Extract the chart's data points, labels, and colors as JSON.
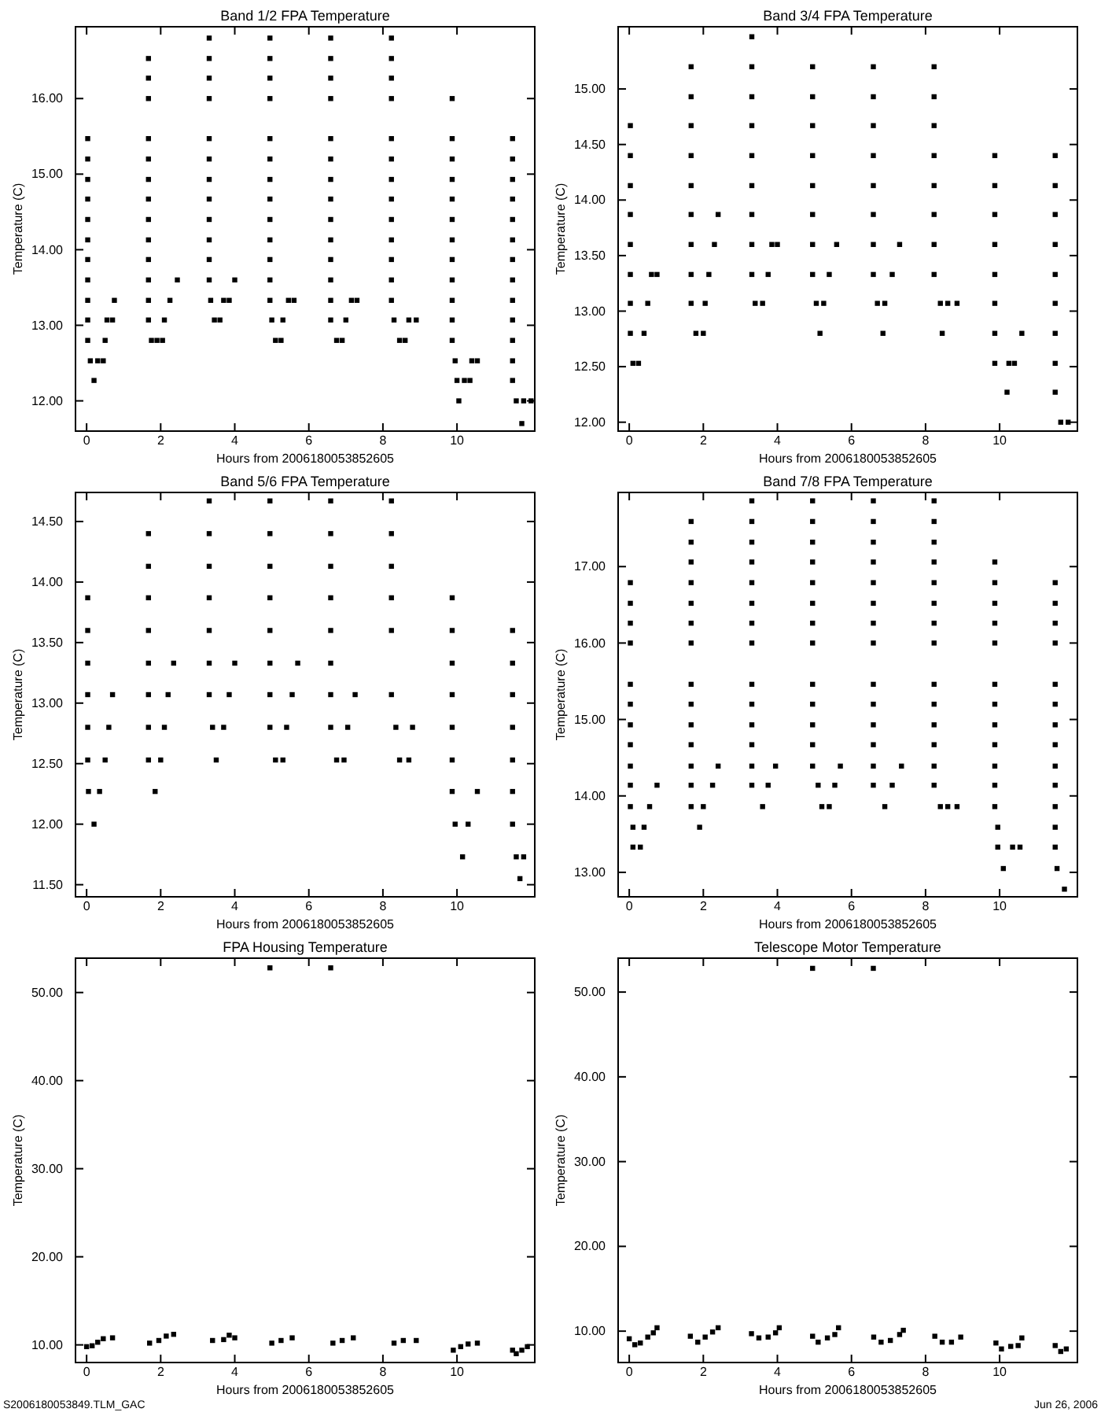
{
  "chart_data": [
    {
      "type": "scatter",
      "title": "Band 1/2 FPA Temperature",
      "xlabel": "Hours from 2006180053852605",
      "ylabel": "Temperature (C)",
      "marker": "square",
      "color": "#000000",
      "xlim": [
        -0.3,
        12.1
      ],
      "xticks": [
        0,
        2,
        4,
        6,
        8,
        10
      ],
      "ylim": [
        11.6,
        16.95
      ],
      "yticks": [
        {
          "value": 12,
          "label": "12.00"
        },
        {
          "value": 13,
          "label": "13.00"
        },
        {
          "value": 14,
          "label": "14.00"
        },
        {
          "value": 15,
          "label": "15.00"
        },
        {
          "value": 16,
          "label": "16.00"
        }
      ],
      "x": [
        0.03,
        0.03,
        0.03,
        0.03,
        0.03,
        0.03,
        0.03,
        0.03,
        0.03,
        0.03,
        0.03,
        0.1,
        0.3,
        0.45,
        0.2,
        0.5,
        0.55,
        0.7,
        0.75,
        1.67,
        1.67,
        1.67,
        1.67,
        1.67,
        1.67,
        1.67,
        1.67,
        1.67,
        1.67,
        1.67,
        1.67,
        1.67,
        1.75,
        1.9,
        2.05,
        2.1,
        2.25,
        2.45,
        3.31,
        3.31,
        3.31,
        3.31,
        3.31,
        3.31,
        3.31,
        3.31,
        3.31,
        3.31,
        3.31,
        3.31,
        3.35,
        3.45,
        3.6,
        3.7,
        3.85,
        4.0,
        4.95,
        4.95,
        4.95,
        4.95,
        4.95,
        4.95,
        4.95,
        4.95,
        4.95,
        4.95,
        4.95,
        4.95,
        4.95,
        5.0,
        5.1,
        5.25,
        5.3,
        5.45,
        5.6,
        6.59,
        6.59,
        6.59,
        6.59,
        6.59,
        6.59,
        6.59,
        6.59,
        6.59,
        6.59,
        6.59,
        6.59,
        6.59,
        6.59,
        6.75,
        6.9,
        7.0,
        7.15,
        7.3,
        8.23,
        8.23,
        8.23,
        8.23,
        8.23,
        8.23,
        8.23,
        8.23,
        8.23,
        8.23,
        8.23,
        8.23,
        8.23,
        8.3,
        8.45,
        8.6,
        8.7,
        8.9,
        9.87,
        9.87,
        9.87,
        9.87,
        9.87,
        9.87,
        9.87,
        9.87,
        9.87,
        9.87,
        9.87,
        9.87,
        9.95,
        10.0,
        10.2,
        10.35,
        10.05,
        10.4,
        10.55,
        11.5,
        11.5,
        11.5,
        11.5,
        11.5,
        11.5,
        11.5,
        11.5,
        11.5,
        11.5,
        11.5,
        11.5,
        11.5,
        11.6,
        11.8,
        12.0,
        11.75
      ],
      "values": [
        15.47,
        15.2,
        14.93,
        14.67,
        14.4,
        14.13,
        13.87,
        13.6,
        13.33,
        13.07,
        12.8,
        12.53,
        12.53,
        12.53,
        12.27,
        12.8,
        13.07,
        13.07,
        13.33,
        16.53,
        16.27,
        16.0,
        15.47,
        15.2,
        14.93,
        14.67,
        14.4,
        14.13,
        13.87,
        13.6,
        13.33,
        13.07,
        12.8,
        12.8,
        12.8,
        13.07,
        13.33,
        13.6,
        16.8,
        16.53,
        16.27,
        16.0,
        15.47,
        15.2,
        14.93,
        14.67,
        14.4,
        14.13,
        13.87,
        13.6,
        13.33,
        13.07,
        13.07,
        13.33,
        13.33,
        13.6,
        16.8,
        16.53,
        16.27,
        16.0,
        15.47,
        15.2,
        14.93,
        14.67,
        14.4,
        14.13,
        13.87,
        13.6,
        13.33,
        13.07,
        12.8,
        12.8,
        13.07,
        13.33,
        13.33,
        16.8,
        16.53,
        16.27,
        16.0,
        15.47,
        15.2,
        14.93,
        14.67,
        14.4,
        14.13,
        13.87,
        13.6,
        13.33,
        13.07,
        12.8,
        12.8,
        13.07,
        13.33,
        13.33,
        16.8,
        16.53,
        16.27,
        16.0,
        15.47,
        15.2,
        14.93,
        14.67,
        14.4,
        14.13,
        13.87,
        13.6,
        13.33,
        13.07,
        12.8,
        12.8,
        13.07,
        13.07,
        16.0,
        15.47,
        15.2,
        14.93,
        14.67,
        14.4,
        14.13,
        13.87,
        13.6,
        13.33,
        13.07,
        12.8,
        12.53,
        12.27,
        12.27,
        12.27,
        12.0,
        12.53,
        12.53,
        15.47,
        15.2,
        14.93,
        14.67,
        14.4,
        14.13,
        13.87,
        13.6,
        13.33,
        13.07,
        12.8,
        12.53,
        12.27,
        12.0,
        12.0,
        12.0,
        11.7
      ]
    },
    {
      "type": "scatter",
      "title": "Band 3/4 FPA Temperature",
      "xlabel": "Hours from 2006180053852605",
      "ylabel": "Temperature (C)",
      "marker": "square",
      "color": "#000000",
      "xlim": [
        -0.3,
        12.1
      ],
      "xticks": [
        0,
        2,
        4,
        6,
        8,
        10
      ],
      "ylim": [
        11.92,
        15.56
      ],
      "yticks": [
        {
          "value": 12,
          "label": "12.00"
        },
        {
          "value": 12.5,
          "label": "12.50"
        },
        {
          "value": 13,
          "label": "13.00"
        },
        {
          "value": 13.5,
          "label": "13.50"
        },
        {
          "value": 14,
          "label": "14.00"
        },
        {
          "value": 14.5,
          "label": "14.50"
        },
        {
          "value": 15,
          "label": "15.00"
        }
      ],
      "x": [
        0.03,
        0.03,
        0.03,
        0.03,
        0.03,
        0.03,
        0.03,
        0.03,
        0.1,
        0.25,
        0.4,
        0.5,
        0.6,
        0.75,
        1.67,
        1.67,
        1.67,
        1.67,
        1.67,
        1.67,
        1.67,
        1.67,
        1.67,
        1.8,
        2.0,
        2.05,
        2.15,
        2.3,
        2.4,
        3.31,
        3.31,
        3.31,
        3.31,
        3.31,
        3.31,
        3.31,
        3.31,
        3.31,
        3.4,
        3.6,
        3.75,
        3.85,
        4.0,
        4.95,
        4.95,
        4.95,
        4.95,
        4.95,
        4.95,
        4.95,
        4.95,
        5.05,
        5.25,
        5.15,
        5.4,
        5.6,
        6.59,
        6.59,
        6.59,
        6.59,
        6.59,
        6.59,
        6.59,
        6.59,
        6.7,
        6.9,
        6.85,
        7.1,
        7.3,
        8.23,
        8.23,
        8.23,
        8.23,
        8.23,
        8.23,
        8.23,
        8.23,
        8.4,
        8.6,
        8.85,
        8.45,
        9.87,
        9.87,
        9.87,
        9.87,
        9.87,
        9.87,
        9.87,
        9.87,
        10.2,
        10.25,
        10.4,
        10.6,
        11.5,
        11.5,
        11.5,
        11.5,
        11.5,
        11.5,
        11.5,
        11.5,
        11.5,
        11.65,
        11.85
      ],
      "values": [
        14.67,
        14.4,
        14.13,
        13.87,
        13.6,
        13.33,
        13.07,
        12.8,
        12.53,
        12.53,
        12.8,
        13.07,
        13.33,
        13.33,
        15.2,
        14.93,
        14.67,
        14.4,
        14.13,
        13.87,
        13.6,
        13.33,
        13.07,
        12.8,
        12.8,
        13.07,
        13.33,
        13.6,
        13.87,
        15.47,
        15.2,
        14.93,
        14.67,
        14.4,
        14.13,
        13.87,
        13.6,
        13.33,
        13.07,
        13.07,
        13.33,
        13.6,
        13.6,
        15.2,
        14.93,
        14.67,
        14.4,
        14.13,
        13.87,
        13.6,
        13.33,
        13.07,
        13.07,
        12.8,
        13.33,
        13.6,
        15.2,
        14.93,
        14.67,
        14.4,
        14.13,
        13.87,
        13.6,
        13.33,
        13.07,
        13.07,
        12.8,
        13.33,
        13.6,
        15.2,
        14.93,
        14.67,
        14.4,
        14.13,
        13.87,
        13.6,
        13.33,
        13.07,
        13.07,
        13.07,
        12.8,
        14.4,
        14.13,
        13.87,
        13.6,
        13.33,
        13.07,
        12.8,
        12.53,
        12.27,
        12.53,
        12.53,
        12.8,
        14.4,
        14.13,
        13.87,
        13.6,
        13.33,
        13.07,
        12.8,
        12.53,
        12.27,
        12.0,
        12.0
      ]
    },
    {
      "type": "scatter",
      "title": "Band 5/6 FPA Temperature",
      "xlabel": "Hours from 2006180053852605",
      "ylabel": "Temperature (C)",
      "marker": "square",
      "color": "#000000",
      "xlim": [
        -0.3,
        12.1
      ],
      "xticks": [
        0,
        2,
        4,
        6,
        8,
        10
      ],
      "ylim": [
        11.4,
        14.74
      ],
      "yticks": [
        {
          "value": 11.5,
          "label": "11.50"
        },
        {
          "value": 12,
          "label": "12.00"
        },
        {
          "value": 12.5,
          "label": "12.50"
        },
        {
          "value": 13,
          "label": "13.00"
        },
        {
          "value": 13.5,
          "label": "13.50"
        },
        {
          "value": 14,
          "label": "14.00"
        },
        {
          "value": 14.5,
          "label": "14.50"
        }
      ],
      "x": [
        0.03,
        0.03,
        0.03,
        0.03,
        0.03,
        0.03,
        0.05,
        0.2,
        0.35,
        0.5,
        0.6,
        0.7,
        1.67,
        1.67,
        1.67,
        1.67,
        1.67,
        1.67,
        1.67,
        1.67,
        1.85,
        2.0,
        2.1,
        2.2,
        2.35,
        3.31,
        3.31,
        3.31,
        3.31,
        3.31,
        3.31,
        3.31,
        3.4,
        3.5,
        3.7,
        3.85,
        4.0,
        4.95,
        4.95,
        4.95,
        4.95,
        4.95,
        4.95,
        4.95,
        4.95,
        5.1,
        5.3,
        5.4,
        5.55,
        5.7,
        6.59,
        6.59,
        6.59,
        6.59,
        6.59,
        6.59,
        6.59,
        6.59,
        6.75,
        6.95,
        7.05,
        7.25,
        8.23,
        8.23,
        8.23,
        8.23,
        8.23,
        8.23,
        8.35,
        8.45,
        8.7,
        8.8,
        9.87,
        9.87,
        9.87,
        9.87,
        9.87,
        9.87,
        9.87,
        9.95,
        10.15,
        10.3,
        10.55,
        11.5,
        11.5,
        11.5,
        11.5,
        11.5,
        11.5,
        11.5,
        11.6,
        11.8,
        11.7
      ],
      "values": [
        13.87,
        13.6,
        13.33,
        13.07,
        12.8,
        12.53,
        12.27,
        12.0,
        12.27,
        12.53,
        12.8,
        13.07,
        14.4,
        14.13,
        13.87,
        13.6,
        13.33,
        13.07,
        12.8,
        12.53,
        12.27,
        12.53,
        12.8,
        13.07,
        13.33,
        14.67,
        14.4,
        14.13,
        13.87,
        13.6,
        13.33,
        13.07,
        12.8,
        12.53,
        12.8,
        13.07,
        13.33,
        14.67,
        14.4,
        14.13,
        13.87,
        13.6,
        13.33,
        13.07,
        12.8,
        12.53,
        12.53,
        12.8,
        13.07,
        13.33,
        14.67,
        14.4,
        14.13,
        13.87,
        13.6,
        13.33,
        13.07,
        12.8,
        12.53,
        12.53,
        12.8,
        13.07,
        14.67,
        14.4,
        14.13,
        13.87,
        13.6,
        13.07,
        12.8,
        12.53,
        12.53,
        12.8,
        13.87,
        13.6,
        13.33,
        13.07,
        12.8,
        12.53,
        12.27,
        12.0,
        11.73,
        12.0,
        12.27,
        13.6,
        13.33,
        13.07,
        12.8,
        12.53,
        12.27,
        12.0,
        11.73,
        11.73,
        11.55
      ]
    },
    {
      "type": "scatter",
      "title": "Band 7/8 FPA Temperature",
      "xlabel": "Hours from 2006180053852605",
      "ylabel": "Temperature (C)",
      "marker": "square",
      "color": "#000000",
      "xlim": [
        -0.3,
        12.1
      ],
      "xticks": [
        0,
        2,
        4,
        6,
        8,
        10
      ],
      "ylim": [
        12.68,
        17.97
      ],
      "yticks": [
        {
          "value": 13,
          "label": "13.00"
        },
        {
          "value": 14,
          "label": "14.00"
        },
        {
          "value": 15,
          "label": "15.00"
        },
        {
          "value": 16,
          "label": "16.00"
        },
        {
          "value": 17,
          "label": "17.00"
        }
      ],
      "x": [
        0.03,
        0.03,
        0.03,
        0.03,
        0.03,
        0.03,
        0.03,
        0.03,
        0.03,
        0.03,
        0.03,
        0.1,
        0.1,
        0.3,
        0.4,
        0.55,
        0.75,
        1.67,
        1.67,
        1.67,
        1.67,
        1.67,
        1.67,
        1.67,
        1.67,
        1.67,
        1.67,
        1.67,
        1.67,
        1.67,
        1.67,
        1.9,
        2.0,
        2.25,
        2.4,
        3.31,
        3.31,
        3.31,
        3.31,
        3.31,
        3.31,
        3.31,
        3.31,
        3.31,
        3.31,
        3.31,
        3.31,
        3.31,
        3.31,
        3.6,
        3.75,
        3.95,
        4.95,
        4.95,
        4.95,
        4.95,
        4.95,
        4.95,
        4.95,
        4.95,
        4.95,
        4.95,
        4.95,
        4.95,
        4.95,
        5.1,
        5.2,
        5.4,
        5.55,
        5.7,
        6.59,
        6.59,
        6.59,
        6.59,
        6.59,
        6.59,
        6.59,
        6.59,
        6.59,
        6.59,
        6.59,
        6.59,
        6.59,
        6.59,
        6.9,
        7.1,
        7.35,
        8.23,
        8.23,
        8.23,
        8.23,
        8.23,
        8.23,
        8.23,
        8.23,
        8.23,
        8.23,
        8.23,
        8.23,
        8.23,
        8.23,
        8.4,
        8.6,
        8.85,
        9.87,
        9.87,
        9.87,
        9.87,
        9.87,
        9.87,
        9.87,
        9.87,
        9.87,
        9.87,
        9.87,
        9.87,
        9.95,
        9.95,
        10.1,
        10.35,
        10.55,
        11.5,
        11.5,
        11.5,
        11.5,
        11.5,
        11.5,
        11.5,
        11.5,
        11.5,
        11.5,
        11.5,
        11.5,
        11.5,
        11.55,
        11.75
      ],
      "values": [
        16.79,
        16.52,
        16.26,
        16.0,
        15.46,
        15.2,
        14.93,
        14.67,
        14.39,
        14.14,
        13.86,
        13.59,
        13.33,
        13.33,
        13.59,
        13.86,
        14.14,
        17.59,
        17.32,
        17.06,
        16.79,
        16.52,
        16.26,
        16.0,
        15.46,
        15.2,
        14.93,
        14.67,
        14.39,
        14.14,
        13.86,
        13.59,
        13.86,
        14.14,
        14.39,
        17.86,
        17.59,
        17.32,
        17.06,
        16.79,
        16.52,
        16.26,
        16.0,
        15.46,
        15.2,
        14.93,
        14.67,
        14.39,
        14.14,
        13.86,
        14.14,
        14.39,
        17.86,
        17.59,
        17.32,
        17.06,
        16.79,
        16.52,
        16.26,
        16.0,
        15.46,
        15.2,
        14.93,
        14.67,
        14.39,
        14.14,
        13.86,
        13.86,
        14.14,
        14.39,
        17.86,
        17.59,
        17.32,
        17.06,
        16.79,
        16.52,
        16.26,
        16.0,
        15.46,
        15.2,
        14.93,
        14.67,
        14.39,
        14.14,
        13.86,
        14.14,
        14.39,
        17.86,
        17.59,
        17.32,
        17.06,
        16.79,
        16.52,
        16.26,
        16.0,
        15.46,
        15.2,
        14.93,
        14.67,
        14.39,
        14.14,
        13.86,
        13.86,
        13.86,
        17.06,
        16.79,
        16.52,
        16.26,
        16.0,
        15.46,
        15.2,
        14.93,
        14.67,
        14.39,
        14.14,
        13.86,
        13.59,
        13.33,
        13.05,
        13.33,
        13.33,
        16.79,
        16.52,
        16.26,
        16.0,
        15.46,
        15.2,
        14.93,
        14.67,
        14.39,
        14.14,
        13.86,
        13.59,
        13.33,
        13.05,
        12.78
      ]
    },
    {
      "type": "scatter",
      "title": "FPA Housing Temperature",
      "xlabel": "Hours from 2006180053852605",
      "ylabel": "Temperature (C)",
      "marker": "square",
      "color": "#000000",
      "xlim": [
        -0.3,
        12.1
      ],
      "xticks": [
        0,
        2,
        4,
        6,
        8,
        10
      ],
      "ylim": [
        8.0,
        53.9
      ],
      "yticks": [
        {
          "value": 10,
          "label": "10.00"
        },
        {
          "value": 20,
          "label": "20.00"
        },
        {
          "value": 30,
          "label": "30.00"
        },
        {
          "value": 40,
          "label": "40.00"
        },
        {
          "value": 50,
          "label": "50.00"
        }
      ],
      "annotations": [
        "S2006180053849.TLM_GAC"
      ],
      "x": [
        0.0,
        0.15,
        0.3,
        0.45,
        0.7,
        1.7,
        1.95,
        2.15,
        2.35,
        3.4,
        3.7,
        3.85,
        4.0,
        4.95,
        5.0,
        5.25,
        5.55,
        6.59,
        6.65,
        6.9,
        7.2,
        8.3,
        8.55,
        8.9,
        9.9,
        10.1,
        10.3,
        10.55,
        11.5,
        11.6,
        11.75,
        11.9
      ],
      "values": [
        9.8,
        9.9,
        10.3,
        10.7,
        10.8,
        10.2,
        10.5,
        11.0,
        11.2,
        10.5,
        10.6,
        11.1,
        10.8,
        52.8,
        10.2,
        10.5,
        10.8,
        52.8,
        10.2,
        10.5,
        10.8,
        10.2,
        10.5,
        10.5,
        9.4,
        9.8,
        10.1,
        10.2,
        9.4,
        9.0,
        9.4,
        9.8
      ]
    },
    {
      "type": "scatter",
      "title": "Telescope Motor Temperature",
      "xlabel": "Hours from 2006180053852605",
      "ylabel": "Temperature (C)",
      "marker": "square",
      "color": "#000000",
      "xlim": [
        -0.3,
        12.1
      ],
      "xticks": [
        0,
        2,
        4,
        6,
        8,
        10
      ],
      "ylim": [
        6.3,
        54.0
      ],
      "yticks": [
        {
          "value": 10,
          "label": "10.00"
        },
        {
          "value": 20,
          "label": "20.00"
        },
        {
          "value": 30,
          "label": "30.00"
        },
        {
          "value": 40,
          "label": "40.00"
        },
        {
          "value": 50,
          "label": "50.00"
        }
      ],
      "annotations": [
        "Jun 26, 2006"
      ],
      "x": [
        0.0,
        0.15,
        0.3,
        0.5,
        0.65,
        0.75,
        1.65,
        1.85,
        2.05,
        2.25,
        2.4,
        3.3,
        3.5,
        3.75,
        3.95,
        4.05,
        4.95,
        4.95,
        5.1,
        5.35,
        5.55,
        5.65,
        6.59,
        6.6,
        6.8,
        7.05,
        7.3,
        7.4,
        8.25,
        8.45,
        8.7,
        8.95,
        9.9,
        10.05,
        10.3,
        10.5,
        10.6,
        11.5,
        11.65,
        11.8
      ],
      "values": [
        9.1,
        8.4,
        8.6,
        9.3,
        9.8,
        10.4,
        9.4,
        8.7,
        9.3,
        9.9,
        10.4,
        9.7,
        9.2,
        9.3,
        9.8,
        10.4,
        52.8,
        9.4,
        8.7,
        9.2,
        9.6,
        10.4,
        52.8,
        9.3,
        8.7,
        8.9,
        9.6,
        10.1,
        9.4,
        8.7,
        8.7,
        9.3,
        8.6,
        7.9,
        8.2,
        8.3,
        9.2,
        8.3,
        7.6,
        7.9
      ]
    }
  ]
}
